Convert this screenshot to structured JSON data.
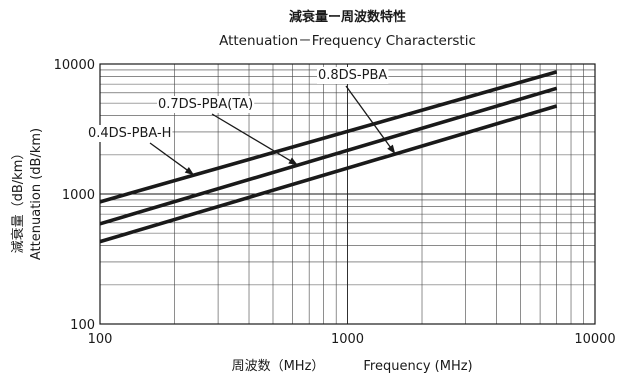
{
  "header": {
    "title_jp": "減衰量ー周波数特性",
    "title_en": "Attenuation－Frequency Characterstic"
  },
  "chart_data": {
    "type": "line",
    "title": "減衰量ー周波数特性",
    "subtitle": "Attenuation－Frequency Characterstic",
    "xlabel_jp": "周波数（MHz）",
    "xlabel_en": "Frequency (MHz)",
    "ylabel_jp": "減衰量（dB/km）",
    "ylabel_en": "Attenuation (dB/km)",
    "x_scale": "log",
    "y_scale": "log",
    "xlim": [
      100,
      10000
    ],
    "ylim": [
      100,
      10000
    ],
    "x_ticks": [
      "100",
      "1000",
      "10000"
    ],
    "y_ticks": [
      "100",
      "1000",
      "10000"
    ],
    "grid": true,
    "line_color": "#1a1a1a",
    "series": [
      {
        "name": "0.8DS-PBA",
        "x": [
          100,
          7000
        ],
        "y": [
          430,
          4750
        ]
      },
      {
        "name": "0.7DS-PBA(TA)",
        "x": [
          100,
          7000
        ],
        "y": [
          590,
          6500
        ]
      },
      {
        "name": "0.4DS-PBA-H",
        "x": [
          100,
          7000
        ],
        "y": [
          870,
          8700
        ]
      }
    ]
  }
}
